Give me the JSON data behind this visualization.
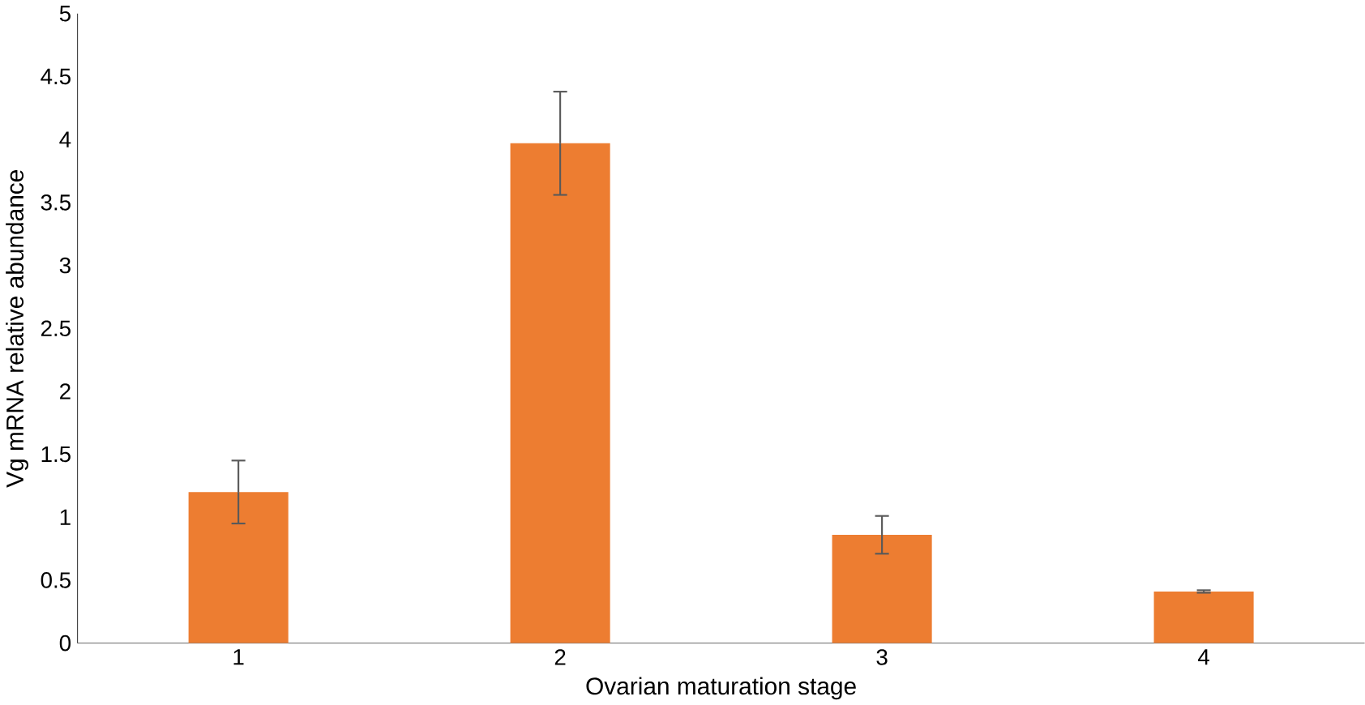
{
  "chart_data": {
    "type": "bar",
    "xlabel": "Ovarian maturation stage",
    "ylabel": "Vg mRNA relative abundance",
    "categories": [
      "1",
      "2",
      "3",
      "4"
    ],
    "values": [
      1.2,
      3.97,
      0.86,
      0.41
    ],
    "errors": [
      0.25,
      0.41,
      0.15,
      0.01
    ],
    "color": "#ed7d31",
    "ylim": [
      0,
      5
    ],
    "yticks": [
      0,
      0.5,
      1,
      1.5,
      2,
      2.5,
      3,
      3.5,
      4,
      4.5,
      5
    ],
    "grid": false
  }
}
